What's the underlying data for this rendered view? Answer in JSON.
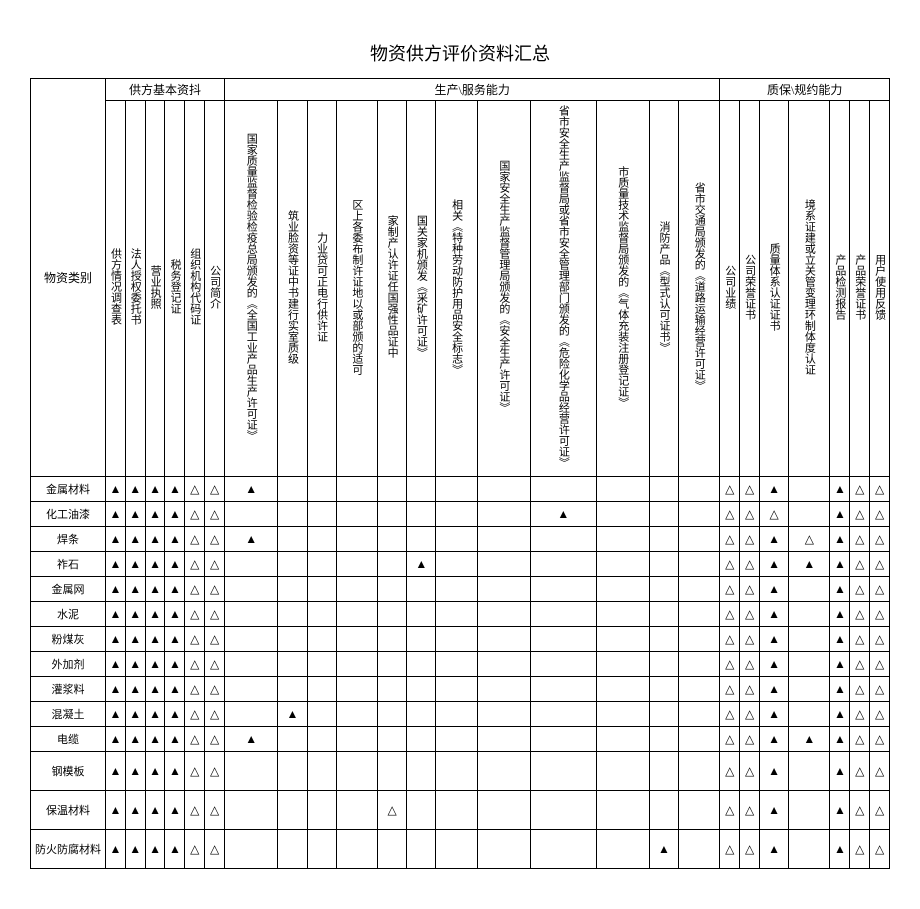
{
  "title": "物资供方评价资料汇总",
  "corner_label": "物资类别",
  "groups": {
    "g1": "供方基本资抖",
    "g2": "生产\\服务能力",
    "g3": "质保\\规约能力"
  },
  "cols": {
    "c0": "供方情况调查表",
    "c1": "法人授权委托书",
    "c2": "营业执照",
    "c3": "税务登记证",
    "c4": "组织机构代码证",
    "c5": "公司简介",
    "c6": "国家质量监督检验检疫总局颁发的《全国工业产品生产许可证》",
    "c7": "筑业脸资等证中书建行实室质级",
    "c8": "力业贷可正电行供许证",
    "c9": "区上各委布制许证地以或部颁的适可",
    "c10": "家制产认许证任国强性品证中",
    "c11": "国关家机颁发《采矿许可证》",
    "c12": "相关《特种劳动防护用品安全标志》",
    "c13": "国家安全生产监督管理局颁发的《安全生产许可证》",
    "c14": "省市安全生产监督局或省市安全管理部门颁发的《危险化学品经营许可证》",
    "c15": "市质量技术监督局颁发的《气体充装注册登记证》",
    "c16": "消防产品《型式认可证书》",
    "c17": "省市交通局颁发的《道路运输经营许可证》",
    "c18": "公司业绩",
    "c19": "公司荣誉证书",
    "c20": "质量体系认证证书",
    "c21": "境系证建或立关管变理环制体度认证",
    "c22": "产品检测报告",
    "c23": "产品荣誉证书",
    "c24": "用户使用反馈"
  },
  "rows": {
    "r0": "金属材料",
    "r1": "化工油漆",
    "r2": "焊条",
    "r3": "祚石",
    "r4": "金属网",
    "r5": "水泥",
    "r6": "粉煤灰",
    "r7": "外加剂",
    "r8": "灌浆料",
    "r9": "混凝土",
    "r10": "电缆",
    "r11": "钢模板",
    "r12": "保温材料",
    "r13": "防火防腐材料"
  },
  "symbols": {
    "f": "▲",
    "e": "△"
  },
  "matrix": [
    [
      "f",
      "f",
      "f",
      "f",
      "e",
      "e",
      "f",
      "",
      "",
      "",
      "",
      "",
      "",
      "",
      "",
      "",
      "",
      "",
      "e",
      "e",
      "f",
      "",
      "f",
      "e",
      "e"
    ],
    [
      "f",
      "f",
      "f",
      "f",
      "e",
      "e",
      "",
      "",
      "",
      "",
      "",
      "",
      "",
      "",
      "f",
      "",
      "",
      "",
      "e",
      "e",
      "e",
      "",
      "f",
      "e",
      "e"
    ],
    [
      "f",
      "f",
      "f",
      "f",
      "e",
      "e",
      "f",
      "",
      "",
      "",
      "",
      "",
      "",
      "",
      "",
      "",
      "",
      "",
      "e",
      "e",
      "f",
      "e",
      "f",
      "e",
      "e"
    ],
    [
      "f",
      "f",
      "f",
      "f",
      "e",
      "e",
      "",
      "",
      "",
      "",
      "",
      "f",
      "",
      "",
      "",
      "",
      "",
      "",
      "e",
      "e",
      "f",
      "f",
      "f",
      "e",
      "e"
    ],
    [
      "f",
      "f",
      "f",
      "f",
      "e",
      "e",
      "",
      "",
      "",
      "",
      "",
      "",
      "",
      "",
      "",
      "",
      "",
      "",
      "e",
      "e",
      "f",
      "",
      "f",
      "e",
      "e"
    ],
    [
      "f",
      "f",
      "f",
      "f",
      "e",
      "e",
      "",
      "",
      "",
      "",
      "",
      "",
      "",
      "",
      "",
      "",
      "",
      "",
      "e",
      "e",
      "f",
      "",
      "f",
      "e",
      "e"
    ],
    [
      "f",
      "f",
      "f",
      "f",
      "e",
      "e",
      "",
      "",
      "",
      "",
      "",
      "",
      "",
      "",
      "",
      "",
      "",
      "",
      "e",
      "e",
      "f",
      "",
      "f",
      "e",
      "e"
    ],
    [
      "f",
      "f",
      "f",
      "f",
      "e",
      "e",
      "",
      "",
      "",
      "",
      "",
      "",
      "",
      "",
      "",
      "",
      "",
      "",
      "e",
      "e",
      "f",
      "",
      "f",
      "e",
      "e"
    ],
    [
      "f",
      "f",
      "f",
      "f",
      "e",
      "e",
      "",
      "",
      "",
      "",
      "",
      "",
      "",
      "",
      "",
      "",
      "",
      "",
      "e",
      "e",
      "f",
      "",
      "f",
      "e",
      "e"
    ],
    [
      "f",
      "f",
      "f",
      "f",
      "e",
      "e",
      "",
      "f",
      "",
      "",
      "",
      "",
      "",
      "",
      "",
      "",
      "",
      "",
      "e",
      "e",
      "f",
      "",
      "f",
      "e",
      "e"
    ],
    [
      "f",
      "f",
      "f",
      "f",
      "e",
      "e",
      "f",
      "",
      "",
      "",
      "",
      "",
      "",
      "",
      "",
      "",
      "",
      "",
      "e",
      "e",
      "f",
      "f",
      "f",
      "e",
      "e"
    ],
    [
      "f",
      "f",
      "f",
      "f",
      "e",
      "e",
      "",
      "",
      "",
      "",
      "",
      "",
      "",
      "",
      "",
      "",
      "",
      "",
      "e",
      "e",
      "f",
      "",
      "f",
      "e",
      "e"
    ],
    [
      "f",
      "f",
      "f",
      "f",
      "e",
      "e",
      "",
      "",
      "",
      "",
      "e",
      "",
      "",
      "",
      "",
      "",
      "",
      "",
      "e",
      "e",
      "f",
      "",
      "f",
      "e",
      "e"
    ],
    [
      "f",
      "f",
      "f",
      "f",
      "e",
      "e",
      "",
      "",
      "",
      "",
      "",
      "",
      "",
      "",
      "",
      "",
      "f",
      "",
      "e",
      "e",
      "f",
      "",
      "f",
      "e",
      "e"
    ]
  ],
  "row_tall": {
    "11": true,
    "12": true,
    "13": true
  }
}
